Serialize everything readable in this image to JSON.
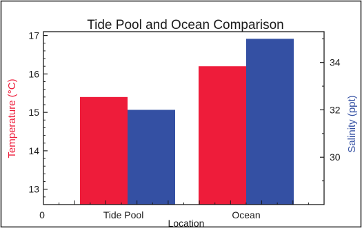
{
  "chart_data": {
    "type": "bar",
    "title": "Tide Pool and Ocean Comparison",
    "xlabel": "Location",
    "categories": [
      "Tide Pool",
      "Ocean"
    ],
    "x_origin_label": "0",
    "series": [
      {
        "name": "Temperature",
        "axis": "left",
        "color": "#ee1c3a",
        "values": [
          15.4,
          16.2
        ]
      },
      {
        "name": "Salinity",
        "axis": "right",
        "color": "#3450a3",
        "values": [
          32.0,
          35.0
        ]
      }
    ],
    "left_axis": {
      "label": "Temperature (°C)",
      "color": "#ee1c3a",
      "range": [
        12.6,
        17.1
      ],
      "ticks": [
        "13",
        "14",
        "15",
        "16",
        "17"
      ]
    },
    "right_axis": {
      "label": "Salinity (ppt)",
      "color": "#3450a3",
      "range": [
        28.0,
        35.3
      ],
      "ticks": [
        "30",
        "32",
        "34"
      ]
    },
    "grid": false,
    "legend": "none"
  }
}
